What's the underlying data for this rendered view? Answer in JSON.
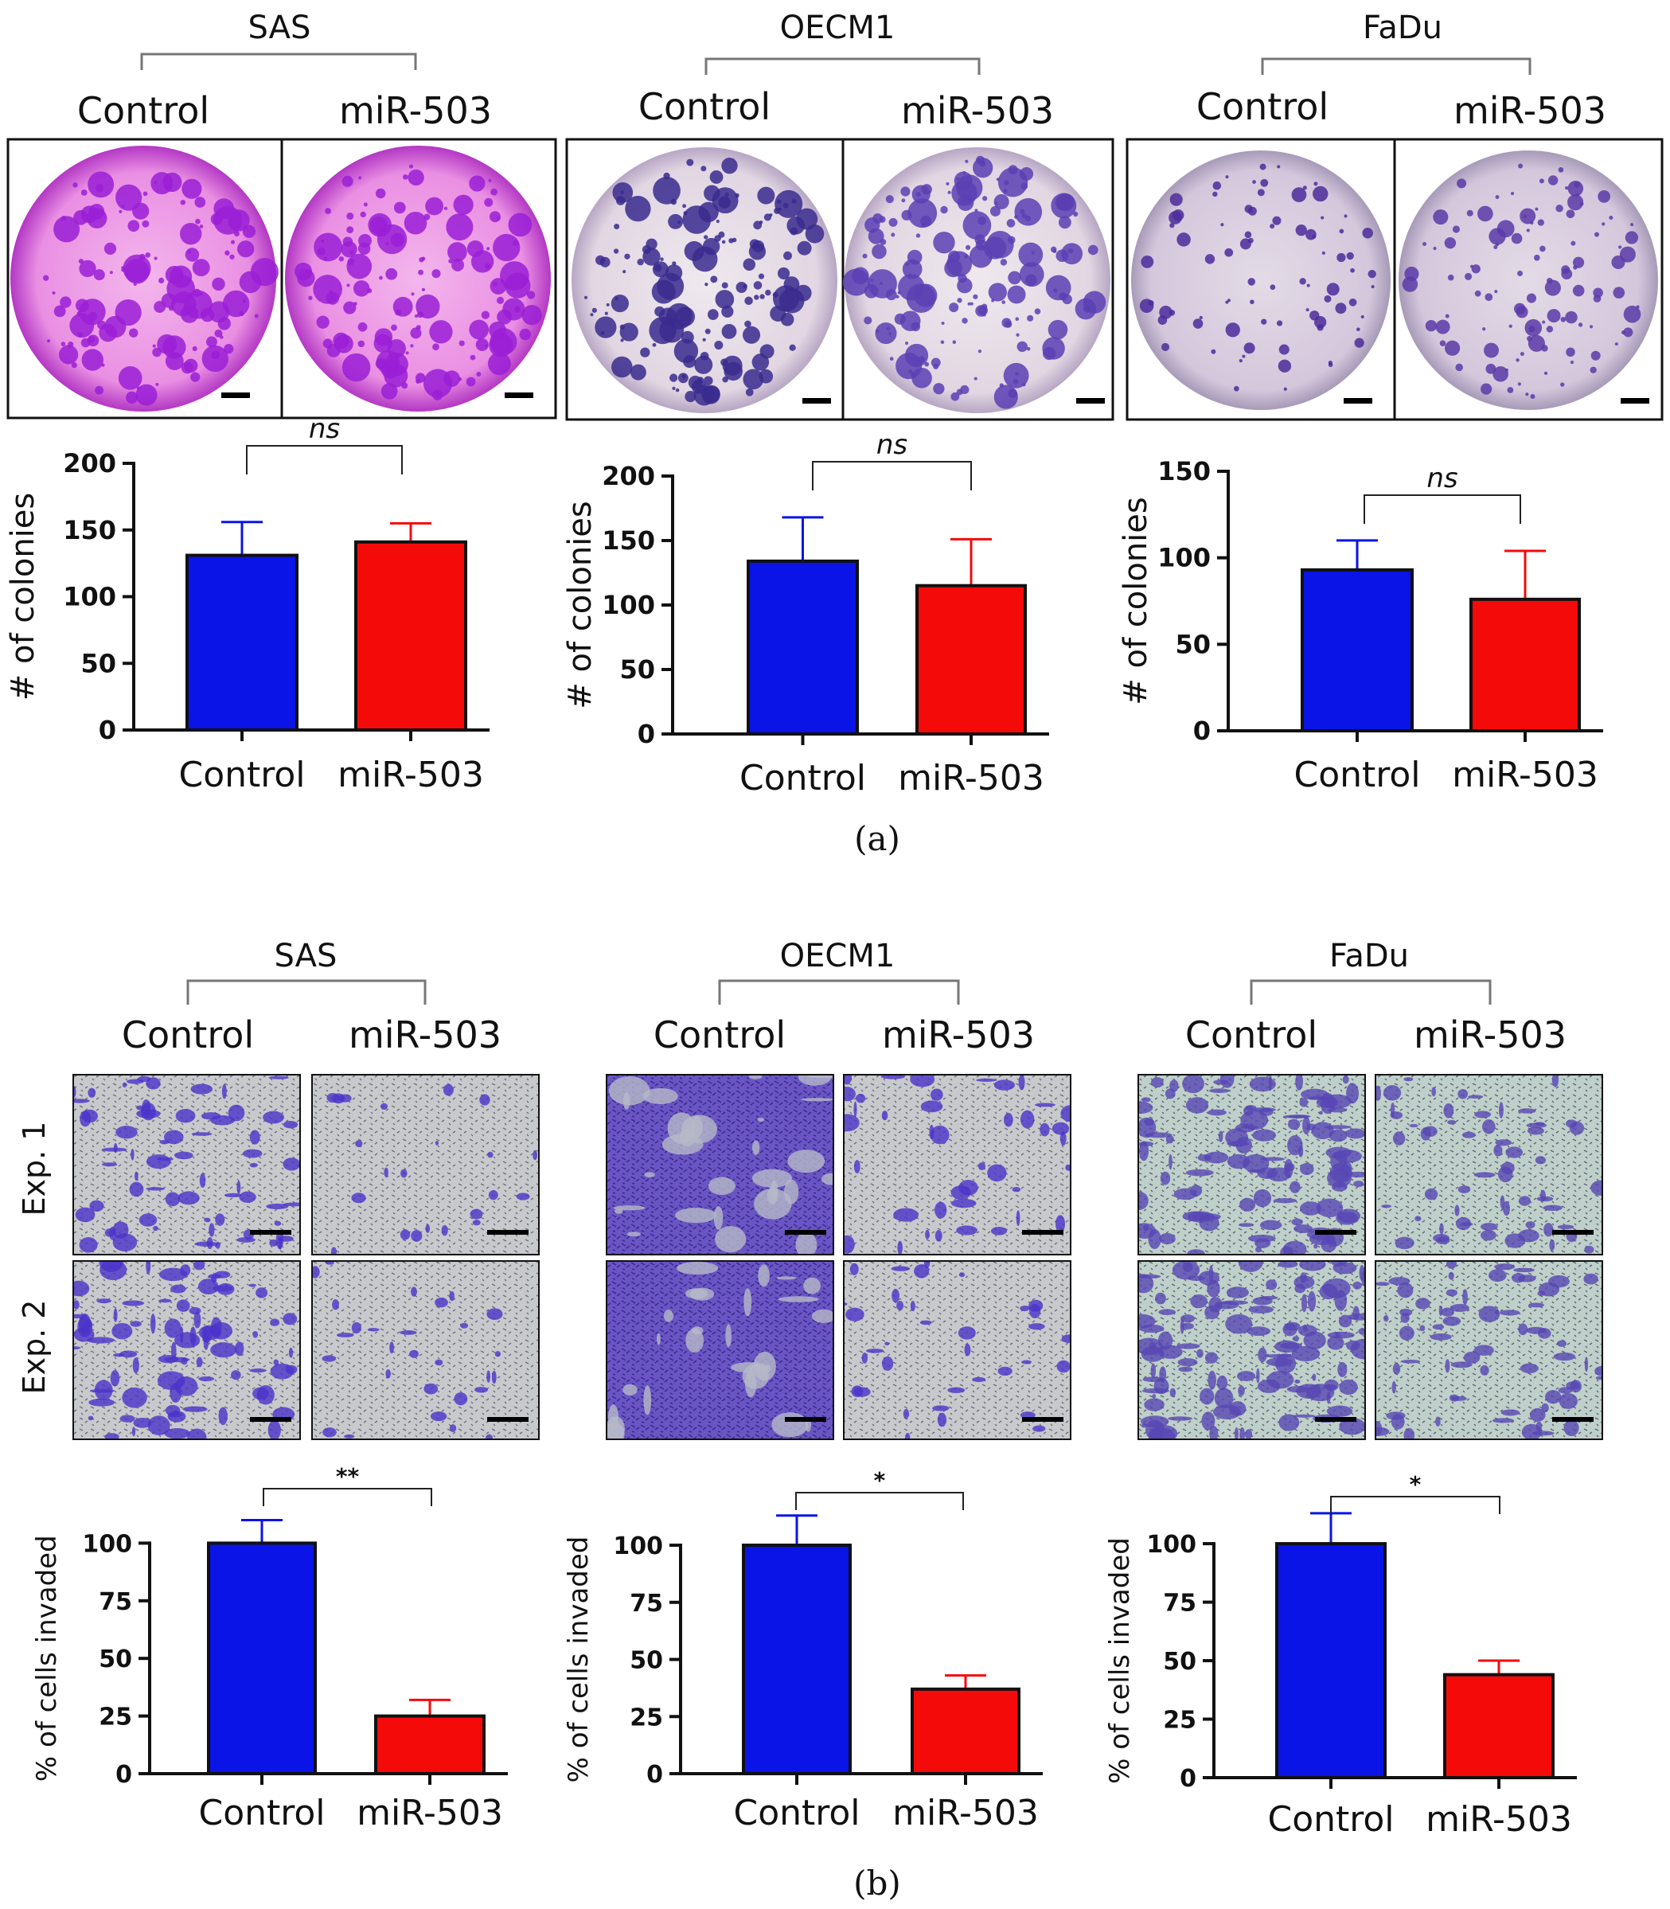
{
  "panel_a": {
    "label": "(a)",
    "groups": [
      {
        "cell_line": "SAS",
        "conditions": [
          "Control",
          "miR-503"
        ]
      },
      {
        "cell_line": "OECM1",
        "conditions": [
          "Control",
          "miR-503"
        ]
      },
      {
        "cell_line": "FaDu",
        "conditions": [
          "Control",
          "miR-503"
        ]
      }
    ]
  },
  "panel_b": {
    "label": "(b)",
    "row_labels": [
      "Exp. 1",
      "Exp. 2"
    ],
    "groups": [
      {
        "cell_line": "SAS",
        "conditions": [
          "Control",
          "miR-503"
        ]
      },
      {
        "cell_line": "OECM1",
        "conditions": [
          "Control",
          "miR-503"
        ]
      },
      {
        "cell_line": "FaDu",
        "conditions": [
          "Control",
          "miR-503"
        ]
      }
    ]
  },
  "colors": {
    "control": "#0a14e6",
    "mir503": "#f50a0a"
  },
  "chart_data": [
    {
      "type": "bar",
      "panel": "a",
      "cell_line": "SAS",
      "categories": [
        "Control",
        "miR-503"
      ],
      "values": [
        131,
        141
      ],
      "errors": [
        25,
        14
      ],
      "ylabel": "# of colonies",
      "ylim": [
        0,
        200
      ],
      "yticks": [
        0,
        50,
        100,
        150,
        200
      ],
      "significance": "ns"
    },
    {
      "type": "bar",
      "panel": "a",
      "cell_line": "OECM1",
      "categories": [
        "Control",
        "miR-503"
      ],
      "values": [
        134,
        115
      ],
      "errors": [
        34,
        36
      ],
      "ylabel": "# of colonies",
      "ylim": [
        0,
        200
      ],
      "yticks": [
        0,
        50,
        100,
        150,
        200
      ],
      "significance": "ns"
    },
    {
      "type": "bar",
      "panel": "a",
      "cell_line": "FaDu",
      "categories": [
        "Control",
        "miR-503"
      ],
      "values": [
        93,
        76
      ],
      "errors": [
        17,
        28
      ],
      "ylabel": "# of colonies",
      "ylim": [
        0,
        150
      ],
      "yticks": [
        0,
        50,
        100,
        150
      ],
      "significance": "ns"
    },
    {
      "type": "bar",
      "panel": "b",
      "cell_line": "SAS",
      "categories": [
        "Control",
        "miR-503"
      ],
      "values": [
        100,
        25
      ],
      "errors": [
        10,
        7
      ],
      "ylabel": "% of cells invaded",
      "ylim": [
        0,
        115
      ],
      "yticks": [
        0,
        25,
        50,
        75,
        100
      ],
      "significance": "**"
    },
    {
      "type": "bar",
      "panel": "b",
      "cell_line": "OECM1",
      "categories": [
        "Control",
        "miR-503"
      ],
      "values": [
        100,
        37
      ],
      "errors": [
        13,
        6
      ],
      "ylabel": "% of cells invaded",
      "ylim": [
        0,
        115
      ],
      "yticks": [
        0,
        25,
        50,
        75,
        100
      ],
      "significance": "*"
    },
    {
      "type": "bar",
      "panel": "b",
      "cell_line": "FaDu",
      "categories": [
        "Control",
        "miR-503"
      ],
      "values": [
        100,
        44
      ],
      "errors": [
        13,
        6
      ],
      "ylabel": "% of cells invaded",
      "ylim": [
        0,
        115
      ],
      "yticks": [
        0,
        25,
        50,
        75,
        100
      ],
      "significance": "*"
    }
  ]
}
